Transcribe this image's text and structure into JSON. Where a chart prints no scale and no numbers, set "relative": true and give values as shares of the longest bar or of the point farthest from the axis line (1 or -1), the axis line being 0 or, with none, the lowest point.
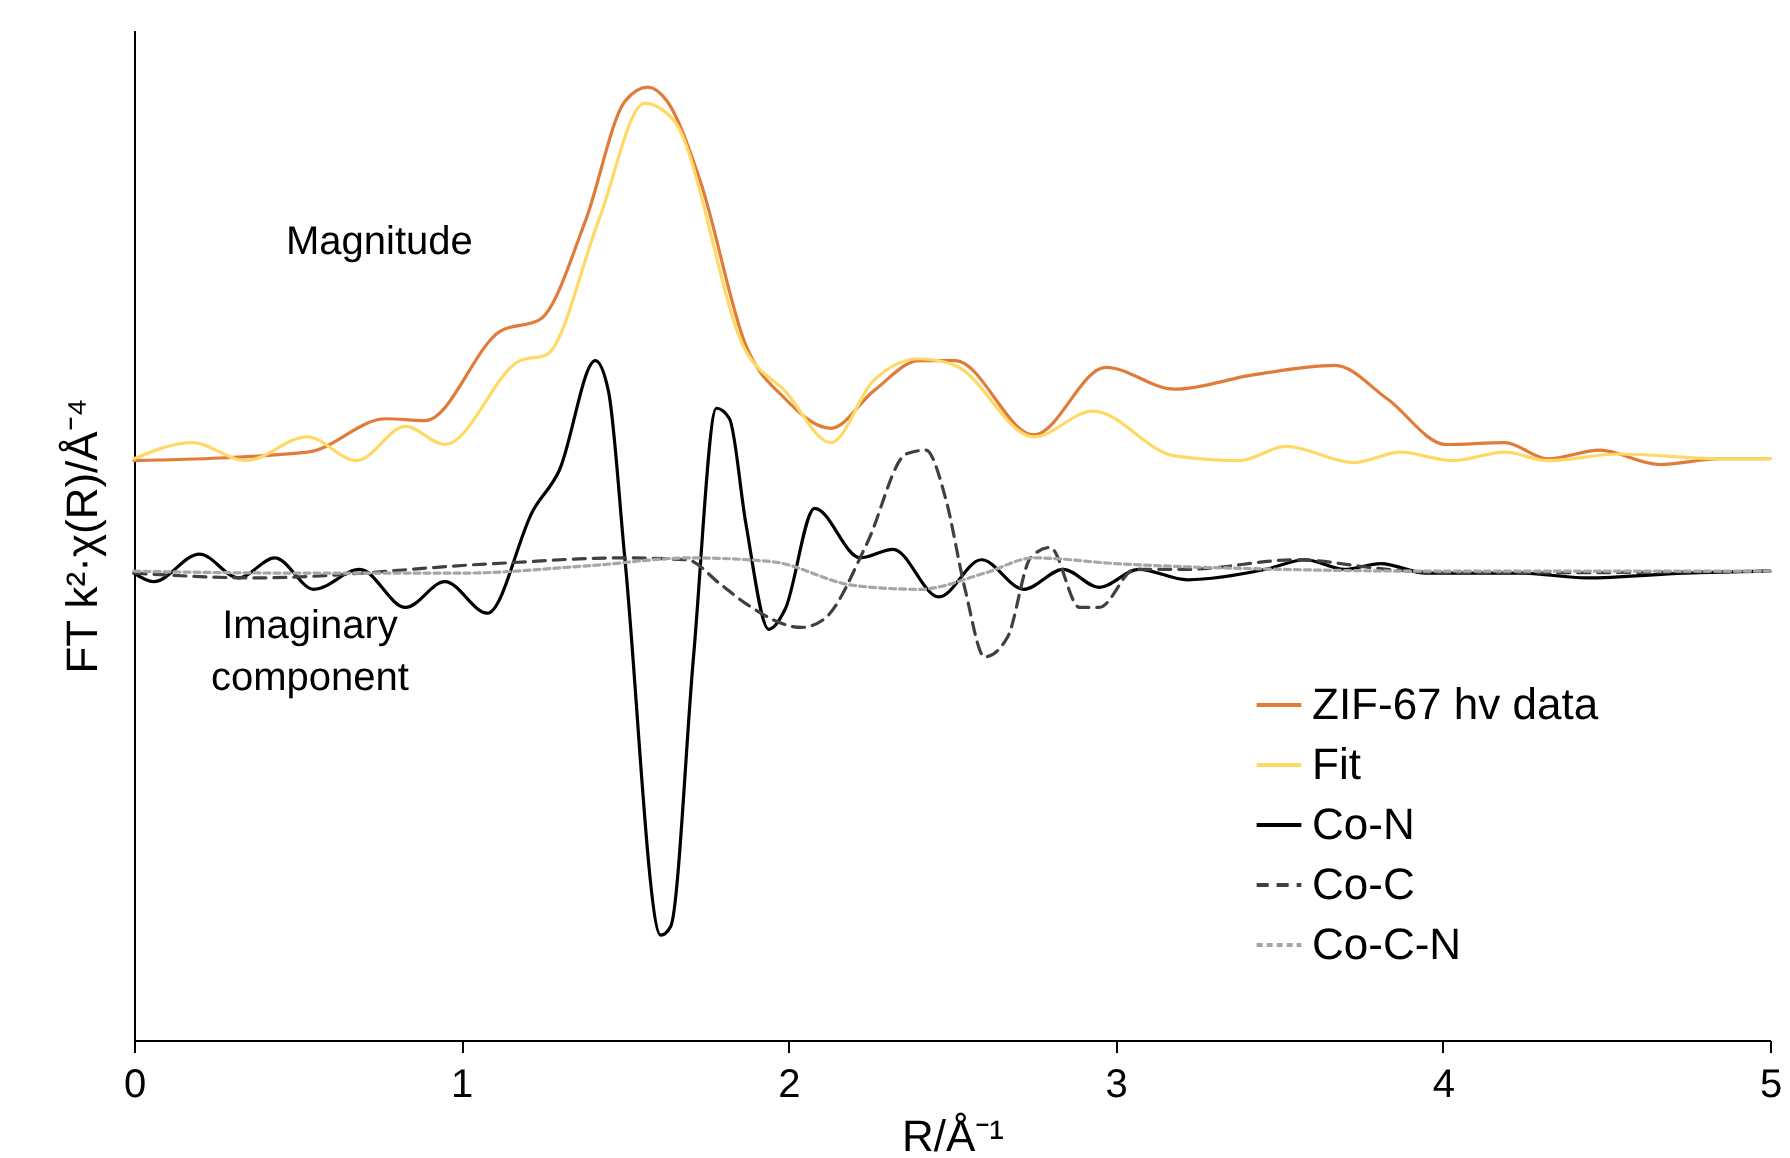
{
  "chart_data": {
    "type": "line",
    "relative": true,
    "xlabel": "R/Å⁻¹",
    "ylabel": "FT k²·χ(R)/Å⁻⁴",
    "xlim": [
      0,
      5
    ],
    "xticks": [
      0,
      1,
      2,
      3,
      4,
      5
    ],
    "legend": "bottom right",
    "marker": "none",
    "annotations": [
      "Magnitude",
      "Imaginary component"
    ],
    "series": [
      {
        "name": "ZIF-67 hv data",
        "color": "#e07b39",
        "line_style": "solid",
        "x": [
          0,
          0.53,
          0.77,
          0.89,
          1.12,
          1.24,
          1.38,
          1.5,
          1.57,
          1.63,
          1.73,
          1.87,
          1.99,
          2.13,
          2.26,
          2.4,
          2.51,
          2.75,
          2.97,
          3.18,
          3.42,
          3.67,
          3.83,
          4.01,
          4.19,
          4.32,
          4.48,
          4.66,
          4.85,
          5
        ],
        "values": [
          0.608,
          0.617,
          0.652,
          0.65,
          0.744,
          0.756,
          0.86,
          0.985,
          1,
          0.985,
          0.902,
          0.729,
          0.673,
          0.642,
          0.681,
          0.713,
          0.713,
          0.635,
          0.706,
          0.683,
          0.698,
          0.708,
          0.673,
          0.625,
          0.627,
          0.61,
          0.619,
          0.604,
          0.61,
          0.61
        ]
      },
      {
        "name": "Fit",
        "color": "#ffd966",
        "line_style": "solid",
        "x": [
          0,
          0.18,
          0.34,
          0.53,
          0.68,
          0.83,
          0.95,
          1.18,
          1.26,
          1.42,
          1.56,
          1.65,
          1.87,
          1.99,
          2.13,
          2.26,
          2.4,
          2.51,
          2.75,
          2.93,
          3.18,
          3.38,
          3.52,
          3.73,
          3.87,
          4.03,
          4.19,
          4.32,
          4.54,
          4.85,
          5
        ],
        "values": [
          0.61,
          0.627,
          0.608,
          0.633,
          0.608,
          0.644,
          0.625,
          0.713,
          0.719,
          0.86,
          0.983,
          0.965,
          0.723,
          0.681,
          0.627,
          0.692,
          0.715,
          0.708,
          0.633,
          0.66,
          0.613,
          0.608,
          0.623,
          0.606,
          0.617,
          0.608,
          0.617,
          0.608,
          0.615,
          0.61,
          0.61
        ]
      },
      {
        "name": "Co-N",
        "color": "#000000",
        "line_style": "solid",
        "x": [
          0,
          0.06,
          0.2,
          0.32,
          0.43,
          0.55,
          0.69,
          0.83,
          0.95,
          1.08,
          1.22,
          1.3,
          1.41,
          1.45,
          1.5,
          1.61,
          1.64,
          1.71,
          1.78,
          1.82,
          1.87,
          1.94,
          1.99,
          2.08,
          2.22,
          2.32,
          2.46,
          2.59,
          2.72,
          2.84,
          2.95,
          3.07,
          3.22,
          3.46,
          3.58,
          3.7,
          3.81,
          3.95,
          4.24,
          4.44,
          4.74,
          5
        ],
        "values": [
          0.49,
          0.481,
          0.51,
          0.485,
          0.506,
          0.473,
          0.494,
          0.454,
          0.481,
          0.448,
          0.556,
          0.598,
          0.713,
          0.681,
          0.506,
          0.11,
          0.119,
          0.402,
          0.663,
          0.652,
          0.542,
          0.431,
          0.452,
          0.558,
          0.506,
          0.515,
          0.465,
          0.504,
          0.473,
          0.494,
          0.475,
          0.494,
          0.483,
          0.494,
          0.504,
          0.494,
          0.5,
          0.49,
          0.49,
          0.485,
          0.49,
          0.492
        ]
      },
      {
        "name": "Co-C",
        "color": "#404040",
        "line_style": "dashed",
        "x": [
          0,
          0.37,
          1.1,
          1.49,
          1.69,
          1.79,
          1.87,
          2.04,
          2.11,
          2.24,
          2.36,
          2.42,
          2.48,
          2.54,
          2.6,
          2.67,
          2.74,
          2.8,
          2.89,
          2.95,
          3.06,
          3.22,
          3.55,
          3.83,
          4.03,
          5
        ],
        "values": [
          0.49,
          0.485,
          0.5,
          0.506,
          0.504,
          0.479,
          0.458,
          0.433,
          0.442,
          0.521,
          0.615,
          0.619,
          0.569,
          0.473,
          0.402,
          0.423,
          0.506,
          0.517,
          0.454,
          0.454,
          0.494,
          0.494,
          0.504,
          0.494,
          0.49,
          0.492
        ]
      },
      {
        "name": "Co-C-N",
        "color": "#a6a6a6",
        "line_style": "dotted",
        "x": [
          0,
          0.5,
          1,
          1.4,
          1.7,
          1.95,
          2.2,
          2.4,
          2.6,
          2.75,
          3,
          3.5,
          4,
          5
        ],
        "values": [
          0.492,
          0.49,
          0.49,
          0.498,
          0.506,
          0.502,
          0.477,
          0.473,
          0.49,
          0.506,
          0.5,
          0.494,
          0.492,
          0.492
        ]
      }
    ]
  }
}
